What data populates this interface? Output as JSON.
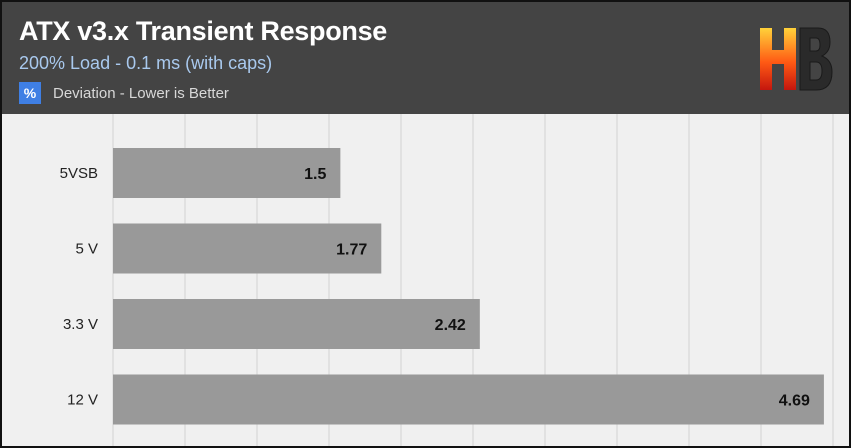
{
  "header": {
    "title": "ATX v3.x Transient Response",
    "subtitle": "200% Load - 0.1 ms (with caps)",
    "legend_symbol": "%",
    "legend_label": "Deviation - Lower is Better"
  },
  "colors": {
    "bar": "#999999",
    "header_bg": "#444444",
    "plot_bg": "#f0f0f0",
    "legend_swatch": "#3f7fe4",
    "logo_gradient": [
      "#ffd23a",
      "#ff5a14",
      "#c4160e"
    ]
  },
  "chart_data": {
    "type": "bar",
    "orientation": "horizontal",
    "title": "ATX v3.x Transient Response",
    "subtitle": "200% Load - 0.1 ms (with caps)",
    "categories": [
      "5VSB",
      "5 V",
      "3.3 V",
      "12 V"
    ],
    "series": [
      {
        "name": "Deviation - Lower is Better",
        "values": [
          1.5,
          1.77,
          2.42,
          4.69
        ]
      }
    ],
    "xlim": [
      0,
      4.75
    ],
    "grid": true,
    "legend_position": "top-left",
    "xlabel": "",
    "ylabel": ""
  }
}
